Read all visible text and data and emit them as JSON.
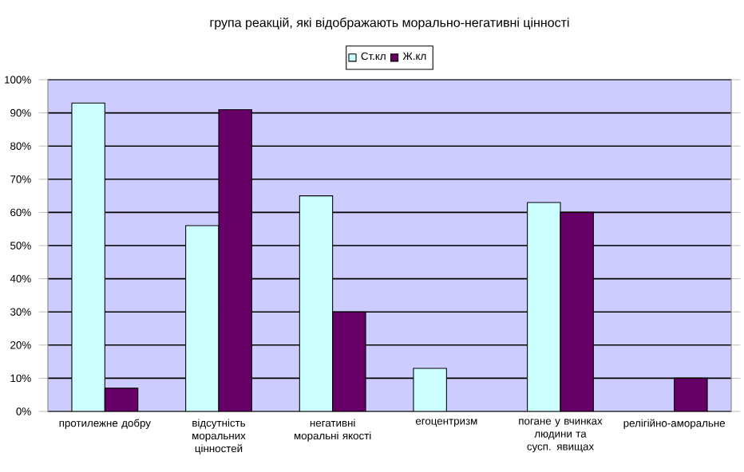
{
  "chart_data": {
    "type": "bar",
    "title": "група реакцій, які відображають морально-негативні цінності",
    "categories": [
      "протилежне добру",
      "відсутність моральних цінностей",
      "негативні моральні якості",
      "егоцентризм",
      "погане у вчинках людини та сусп. явищах",
      "релігійно-аморальне"
    ],
    "series": [
      {
        "name": "Ст.кл",
        "color": "#ccffff",
        "values": [
          93,
          56,
          65,
          13,
          63,
          null
        ]
      },
      {
        "name": "Ж.кл",
        "color": "#660066",
        "values": [
          7,
          91,
          30,
          null,
          60,
          10
        ]
      }
    ],
    "ylim": [
      0,
      100
    ],
    "yticks": [
      {
        "value": 0,
        "label": "0%"
      },
      {
        "value": 10,
        "label": "10%"
      },
      {
        "value": 20,
        "label": "20%"
      },
      {
        "value": 30,
        "label": "30%"
      },
      {
        "value": 40,
        "label": "40%"
      },
      {
        "value": 50,
        "label": "50%"
      },
      {
        "value": 60,
        "label": "60%"
      },
      {
        "value": 70,
        "label": "70%"
      },
      {
        "value": 80,
        "label": "80%"
      },
      {
        "value": 90,
        "label": "90%"
      },
      {
        "value": 100,
        "label": "100%"
      }
    ],
    "grid": "y",
    "legend": "top"
  }
}
